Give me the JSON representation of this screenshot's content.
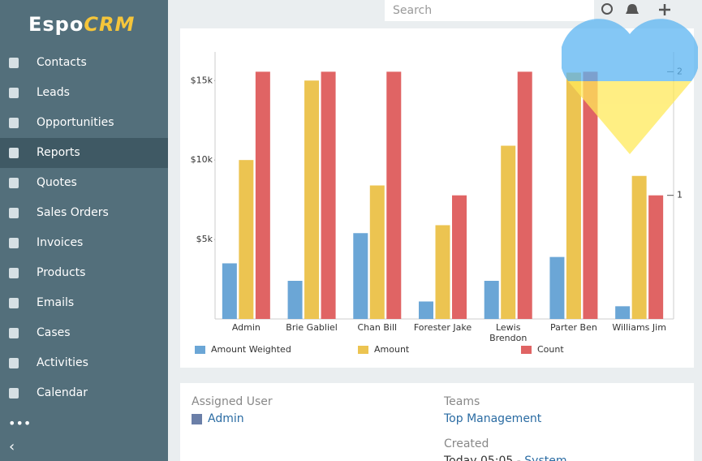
{
  "logo": {
    "espo": "Espo",
    "crm": "CRM"
  },
  "search_placeholder": "Search",
  "nav": [
    "Contacts",
    "Leads",
    "Opportunities",
    "Reports",
    "Quotes",
    "Sales Orders",
    "Invoices",
    "Products",
    "Emails",
    "Cases",
    "Activities",
    "Calendar"
  ],
  "chart_data": {
    "type": "bar",
    "categories": [
      "Admin",
      "Brie Gabliel",
      "Chan Bill",
      "Forester Jake",
      "Lewis Brendon",
      "Parter Ben",
      "Williams Jim"
    ],
    "series": [
      {
        "name": "Amount Weighted",
        "color": "#6ba6d6",
        "values": [
          3500,
          2400,
          5400,
          1100,
          2400,
          3900,
          800
        ]
      },
      {
        "name": "Amount",
        "color": "#ecc451",
        "values": [
          10000,
          15000,
          8400,
          5900,
          10900,
          15500,
          9000
        ]
      },
      {
        "name": "Count",
        "color": "#e06464",
        "axis": "y2",
        "values": [
          2,
          2,
          2,
          1,
          2,
          2,
          1
        ]
      }
    ],
    "ylim": [
      0,
      16800
    ],
    "yticks": [
      {
        "value": 5000,
        "label": "$5k"
      },
      {
        "value": 10000,
        "label": "$10k"
      },
      {
        "value": 15000,
        "label": "$15k"
      }
    ],
    "y2lim": [
      0,
      2.16
    ],
    "y2ticks": [
      1,
      2
    ]
  },
  "details": {
    "assigned_user_label": "Assigned User",
    "assigned_user": "Admin",
    "teams_label": "Teams",
    "teams": "Top Management",
    "created_label": "Created",
    "created": "Today 05:05",
    "created_by": "System"
  }
}
